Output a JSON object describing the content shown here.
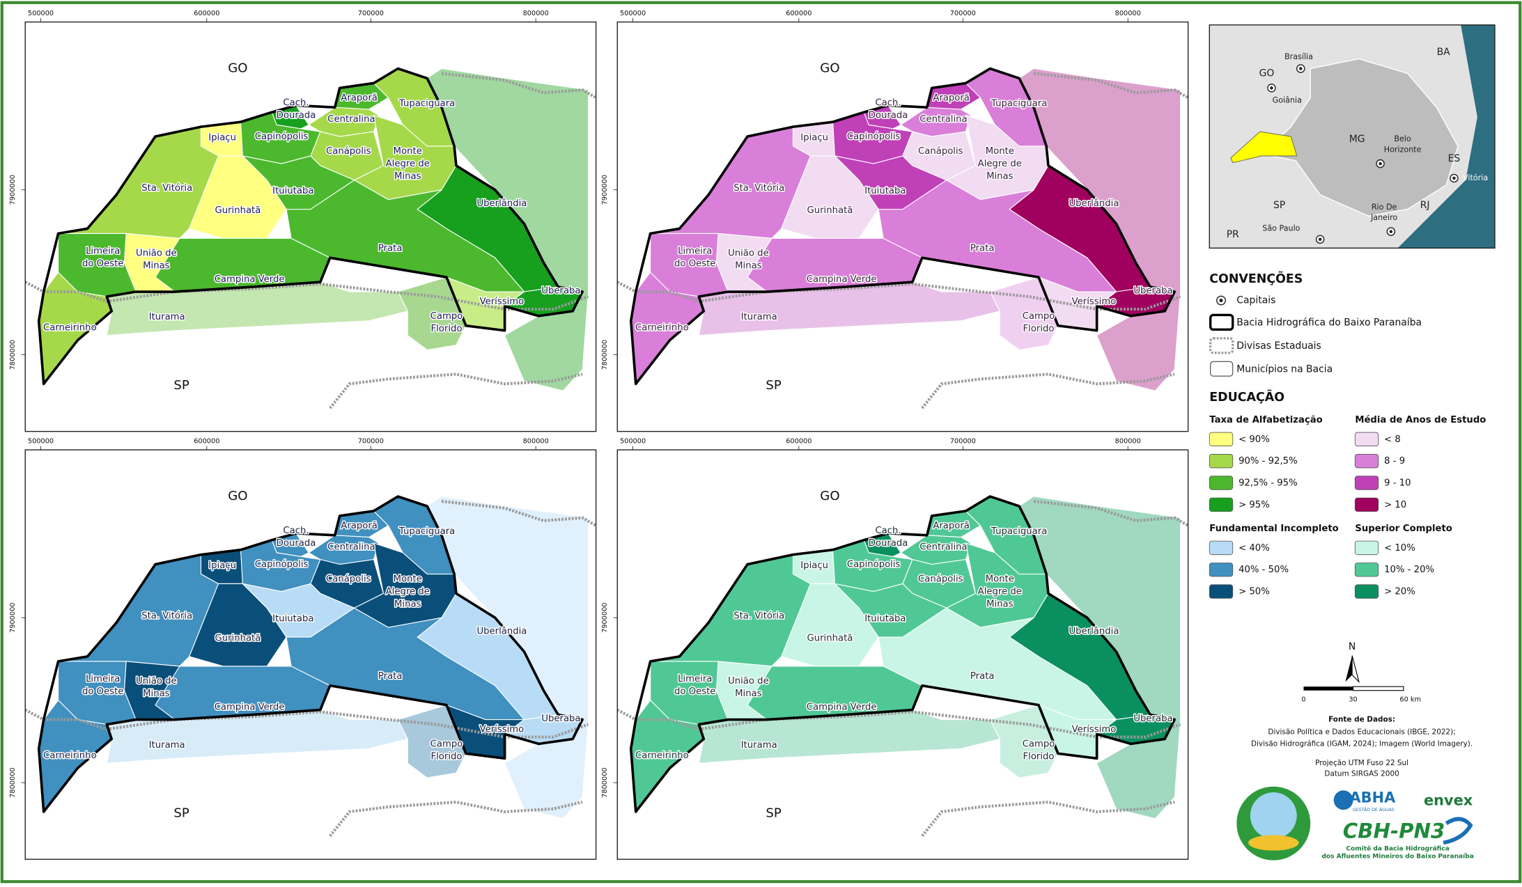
{
  "maps": {
    "x_ticks": [
      500000,
      600000,
      700000,
      800000
    ],
    "y_ticks": [
      7900000,
      7800000
    ],
    "state_labels": [
      "GO",
      "SP"
    ],
    "municipalities": [
      {
        "lines": [
          "Ipiaçu"
        ]
      },
      {
        "lines": [
          "Cach.",
          "Dourada"
        ]
      },
      {
        "lines": [
          "Capinópolis"
        ]
      },
      {
        "lines": [
          "Araporã"
        ]
      },
      {
        "lines": [
          "Tupaciguara"
        ]
      },
      {
        "lines": [
          "Centralina"
        ]
      },
      {
        "lines": [
          "Canápolis"
        ]
      },
      {
        "lines": [
          "Monte",
          "Alegre de",
          "Minas"
        ]
      },
      {
        "lines": [
          "Sta. Vitória"
        ]
      },
      {
        "lines": [
          "Gurinhatã"
        ]
      },
      {
        "lines": [
          "Ituiutaba"
        ]
      },
      {
        "lines": [
          "Uberlândia"
        ]
      },
      {
        "lines": [
          "Prata"
        ]
      },
      {
        "lines": [
          "Campina Verde"
        ]
      },
      {
        "lines": [
          "União de",
          "Minas"
        ]
      },
      {
        "lines": [
          "Limeira",
          "do Oeste"
        ]
      },
      {
        "lines": [
          "Carneirinho"
        ]
      },
      {
        "lines": [
          "Iturama"
        ]
      },
      {
        "lines": [
          "Uberaba"
        ]
      },
      {
        "lines": [
          "Veríssimo"
        ]
      },
      {
        "lines": [
          "Campo",
          "Florido"
        ]
      }
    ],
    "panels": [
      {
        "outside_color": "#a0d8a0",
        "label_color": "#1a1a50",
        "colors": [
          "#ffff80",
          "#16a01e",
          "#4cb82e",
          "#4cb82e",
          "#a6d94a",
          "#a6d94a",
          "#a6d94a",
          "#a6d94a",
          "#a6d94a",
          "#ffff80",
          "#4cb82e",
          "#16a01e",
          "#4cb82e",
          "#4cb82e",
          "#ffff80",
          "#4cb82e",
          "#a6d94a",
          "#c4e6b0",
          "#16a01e",
          "#c8ec88",
          "#a8d890"
        ]
      },
      {
        "outside_color": "#dca0cc",
        "label_color": "#3a2040",
        "colors": [
          "#f2dcf2",
          "#c040b8",
          "#c040b8",
          "#c040b8",
          "#d97fd9",
          "#d97fd9",
          "#f2dcf2",
          "#f2dcf2",
          "#d97fd9",
          "#f2dcf2",
          "#c040b8",
          "#a0005e",
          "#d97fd9",
          "#d97fd9",
          "#f2dcf2",
          "#d97fd9",
          "#d97fd9",
          "#e8c0e8",
          "#a0005e",
          "#f2dcf2",
          "#f0d0f0"
        ]
      },
      {
        "outside_color": "#e0f0fc",
        "label_color": "#1a2040",
        "colors": [
          "#0a4f7a",
          "#4090c0",
          "#4090c0",
          "#4090c0",
          "#4090c0",
          "#4090c0",
          "#0a4f7a",
          "#0a4f7a",
          "#4090c0",
          "#0a4f7a",
          "#b8dcf5",
          "#b8dcf5",
          "#4090c0",
          "#4090c0",
          "#0a4f7a",
          "#4090c0",
          "#4090c0",
          "#d8ecf8",
          "#b8dcf5",
          "#0a4f7a",
          "#a8c8dc"
        ]
      },
      {
        "outside_color": "#a0d8c0",
        "label_color": "#1a2a30",
        "colors": [
          "#c8f5e6",
          "#0a9060",
          "#50c896",
          "#50c896",
          "#50c896",
          "#50c896",
          "#50c896",
          "#50c896",
          "#50c896",
          "#c8f5e6",
          "#50c896",
          "#0a9060",
          "#c8f5e6",
          "#50c896",
          "#c8f5e6",
          "#50c896",
          "#50c896",
          "#b8e6d4",
          "#0a9060",
          "#c8f5e6",
          "#c8eedf"
        ]
      }
    ]
  },
  "inset": {
    "labels": [
      {
        "lines": [
          "Brasília"
        ]
      },
      {
        "lines": [
          "GO"
        ]
      },
      {
        "lines": [
          "Goiânia"
        ]
      },
      {
        "lines": [
          "BA"
        ]
      },
      {
        "lines": [
          "MG"
        ]
      },
      {
        "lines": [
          "Belo",
          "Horizonte"
        ]
      },
      {
        "lines": [
          "ES"
        ]
      },
      {
        "lines": [
          "Vitória"
        ]
      },
      {
        "lines": [
          "SP"
        ]
      },
      {
        "lines": [
          "RJ"
        ]
      },
      {
        "lines": [
          "Rio De",
          "Janeiro"
        ]
      },
      {
        "lines": [
          "São Paulo"
        ]
      },
      {
        "lines": [
          "PR"
        ]
      }
    ]
  },
  "legend": {
    "conventions_title": "CONVENÇÕES",
    "conventions": [
      "Capitais",
      "Bacia Hidrográfica do Baixo Paranaíba",
      "Divisas Estaduais",
      "Municípios na Bacia"
    ],
    "education_title": "EDUCAÇÃO",
    "groups": [
      {
        "title": "Taxa de Alfabetização",
        "items": [
          {
            "label": "< 90%",
            "color": "#ffff80"
          },
          {
            "label": "90% - 92,5%",
            "color": "#a6d94a"
          },
          {
            "label": "92,5% - 95%",
            "color": "#4cb82e"
          },
          {
            "label": "> 95%",
            "color": "#16a01e"
          }
        ]
      },
      {
        "title": "Média de Anos de Estudo",
        "items": [
          {
            "label": "< 8",
            "color": "#f2dcf2"
          },
          {
            "label": "8 - 9",
            "color": "#d97fd9"
          },
          {
            "label": "9 - 10",
            "color": "#c040b8"
          },
          {
            "label": "> 10",
            "color": "#a0005e"
          }
        ]
      },
      {
        "title": "Fundamental Incompleto",
        "items": [
          {
            "label": "< 40%",
            "color": "#b8dcf5"
          },
          {
            "label": "40% - 50%",
            "color": "#4090c0"
          },
          {
            "label": "> 50%",
            "color": "#0a4f7a"
          }
        ]
      },
      {
        "title": "Superior Completo",
        "items": [
          {
            "label": "< 10%",
            "color": "#c8f5e6"
          },
          {
            "label": "10% - 20%",
            "color": "#50c896"
          },
          {
            "label": "> 20%",
            "color": "#0a9060"
          }
        ]
      }
    ],
    "north": "N",
    "scale": [
      "0",
      "30",
      "60 km"
    ],
    "source": [
      "Fonte de Dados:",
      "Divisão Política e Dados Educacionais (IBGE, 2022);",
      "Divisão Hidrográfica (IGAM, 2024); Imagem (World Imagery).",
      "Projeção UTM Fuso 22 Sul",
      "Datum SIRGAS 2000"
    ],
    "logos": {
      "abha": "ABHA",
      "abha_sub": "GESTÃO DE ÁGUAS",
      "envex": "envex",
      "cbh": "CBH-PN3",
      "cbh_sub": [
        "Comitê da Bacia Hidrográfica",
        "dos Afluentes Mineiros do Baixo Paranaíba"
      ]
    }
  }
}
